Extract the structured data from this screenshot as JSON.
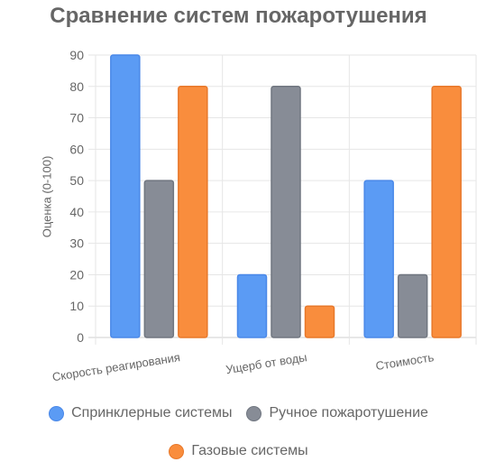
{
  "chart_data": {
    "type": "bar",
    "title": "Сравнение систем пожаротушения",
    "ylabel": "Оценка (0-100)",
    "xlabel": "",
    "categories": [
      "Скорость реагирования",
      "Ущерб от воды",
      "Стоимость"
    ],
    "ylim": [
      0,
      90
    ],
    "yticks": [
      0,
      10,
      20,
      30,
      40,
      50,
      60,
      70,
      80,
      90
    ],
    "grid": true,
    "legend_position": "bottom",
    "series": [
      {
        "name": "Спринклерные системы",
        "values": [
          90,
          20,
          50
        ],
        "color": "#5b9bf4",
        "border": "#4a88e8"
      },
      {
        "name": "Ручное пожаротушение",
        "values": [
          50,
          80,
          20
        ],
        "color": "#878c96",
        "border": "#707680"
      },
      {
        "name": "Газовые системы",
        "values": [
          80,
          10,
          80
        ],
        "color": "#f98d3d",
        "border": "#e8782a"
      }
    ]
  }
}
